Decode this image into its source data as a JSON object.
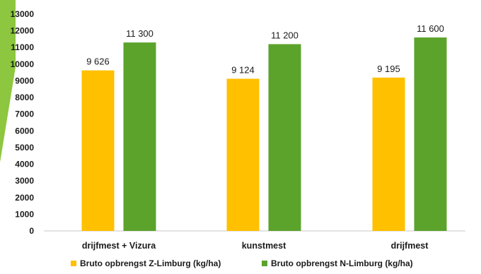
{
  "chart_data": {
    "type": "bar",
    "title": "",
    "xlabel": "",
    "ylabel": "",
    "categories": [
      "drijfmest + Vizura",
      "kunstmest",
      "drijfmest"
    ],
    "series": [
      {
        "name": "Bruto opbrengst Z-Limburg (kg/ha)",
        "values": [
          9626,
          9124,
          9195
        ],
        "labels": [
          "9 626",
          "9 124",
          "9 195"
        ],
        "color": "#FFC000"
      },
      {
        "name": "Bruto opbrengst N-Limburg (kg/ha)",
        "values": [
          11300,
          11200,
          11600
        ],
        "labels": [
          "11 300",
          "11 200",
          "11 600"
        ],
        "color": "#5BA32B"
      }
    ],
    "ylim": [
      0,
      13000
    ],
    "yticks": [
      0,
      1000,
      2000,
      3000,
      4000,
      5000,
      6000,
      7000,
      8000,
      9000,
      10000,
      11000,
      12000,
      13000
    ],
    "grid": false,
    "legend_position": "bottom"
  },
  "decoration": {
    "accent_color": "#8DC63F"
  }
}
